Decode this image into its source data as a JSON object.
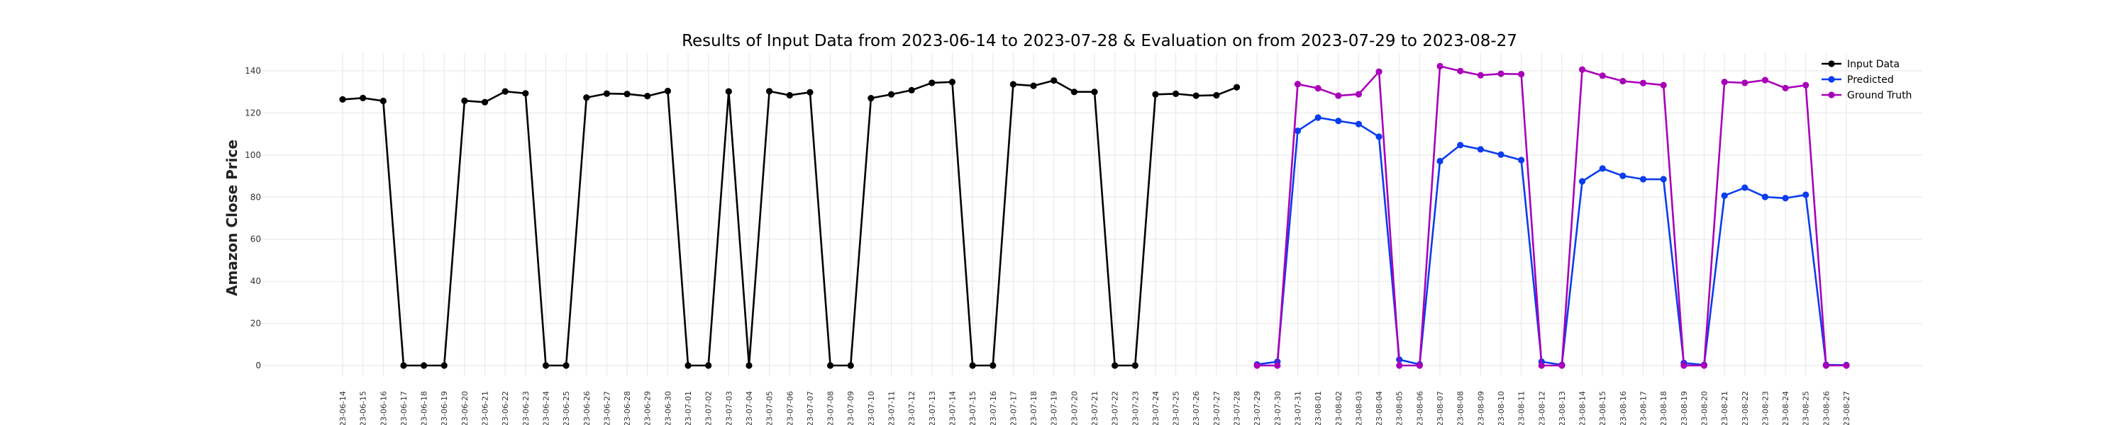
{
  "chart_data": {
    "type": "line",
    "title": "Results of Input Data from 2023-06-14 to 2023-07-28 & Evaluation on from 2023-07-29 to 2023-08-27",
    "ylabel": "Amazon Close Price",
    "xlabel": "",
    "ylim": [
      -5,
      150
    ],
    "yticks": [
      0,
      20,
      40,
      60,
      80,
      100,
      120,
      140
    ],
    "grid": true,
    "legend_position": "top-right",
    "x_tick_labels": [
      "2023-06-14",
      "2023-06-15",
      "2023-06-16",
      "2023-06-17",
      "2023-06-18",
      "2023-06-19",
      "2023-06-20",
      "2023-06-21",
      "2023-06-22",
      "2023-06-23",
      "2023-06-24",
      "2023-06-25",
      "2023-06-26",
      "2023-06-27",
      "2023-06-28",
      "2023-06-29",
      "2023-06-30",
      "2023-07-01",
      "2023-07-02",
      "2023-07-03",
      "2023-07-04",
      "2023-07-05",
      "2023-07-06",
      "2023-07-07",
      "2023-07-08",
      "2023-07-09",
      "2023-07-10",
      "2023-07-11",
      "2023-07-12",
      "2023-07-13",
      "2023-07-14",
      "2023-07-15",
      "2023-07-16",
      "2023-07-17",
      "2023-07-18",
      "2023-07-19",
      "2023-07-20",
      "2023-07-21",
      "2023-07-22",
      "2023-07-23",
      "2023-07-24",
      "2023-07-25",
      "2023-07-26",
      "2023-07-27",
      "2023-07-28",
      "2023-07-29",
      "2023-07-30",
      "2023-07-31",
      "2023-08-01",
      "2023-08-02",
      "2023-08-03",
      "2023-08-04",
      "2023-08-05",
      "2023-08-06",
      "2023-08-07",
      "2023-08-08",
      "2023-08-09",
      "2023-08-10",
      "2023-08-11",
      "2023-08-12",
      "2023-08-13",
      "2023-08-14",
      "2023-08-15",
      "2023-08-16",
      "2023-08-17",
      "2023-08-18",
      "2023-08-19",
      "2023-08-20",
      "2023-08-21",
      "2023-08-22",
      "2023-08-23",
      "2023-08-24",
      "2023-08-25",
      "2023-08-26",
      "2023-08-27"
    ],
    "series": [
      {
        "name": "Input Data",
        "color": "#000000",
        "x": [
          "2023-06-14",
          "2023-06-15",
          "2023-06-16",
          "2023-06-17",
          "2023-06-18",
          "2023-06-19",
          "2023-06-20",
          "2023-06-21",
          "2023-06-22",
          "2023-06-23",
          "2023-06-24",
          "2023-06-25",
          "2023-06-26",
          "2023-06-27",
          "2023-06-28",
          "2023-06-29",
          "2023-06-30",
          "2023-07-01",
          "2023-07-02",
          "2023-07-03",
          "2023-07-04",
          "2023-07-05",
          "2023-07-06",
          "2023-07-07",
          "2023-07-08",
          "2023-07-09",
          "2023-07-10",
          "2023-07-11",
          "2023-07-12",
          "2023-07-13",
          "2023-07-14",
          "2023-07-15",
          "2023-07-16",
          "2023-07-17",
          "2023-07-18",
          "2023-07-19",
          "2023-07-20",
          "2023-07-21",
          "2023-07-22",
          "2023-07-23",
          "2023-07-24",
          "2023-07-25",
          "2023-07-26",
          "2023-07-27",
          "2023-07-28"
        ],
        "values": [
          126.4,
          127.1,
          125.7,
          0,
          0,
          0,
          125.8,
          125.1,
          130.2,
          129.3,
          0,
          0,
          127.3,
          129.2,
          129.0,
          128.0,
          130.4,
          0,
          0,
          130.2,
          0,
          130.3,
          128.4,
          129.8,
          0,
          0,
          127.0,
          128.8,
          130.8,
          134.3,
          134.7,
          0,
          0,
          133.6,
          132.9,
          135.4,
          130.0,
          130.0,
          0,
          0,
          128.8,
          129.1,
          128.2,
          128.4,
          132.2
        ]
      },
      {
        "name": "Predicted",
        "color": "#0a3cf0",
        "x": [
          "2023-07-29",
          "2023-07-30",
          "2023-07-31",
          "2023-08-01",
          "2023-08-02",
          "2023-08-03",
          "2023-08-04",
          "2023-08-05",
          "2023-08-06",
          "2023-08-07",
          "2023-08-08",
          "2023-08-09",
          "2023-08-10",
          "2023-08-11",
          "2023-08-12",
          "2023-08-13",
          "2023-08-14",
          "2023-08-15",
          "2023-08-16",
          "2023-08-17",
          "2023-08-18",
          "2023-08-19",
          "2023-08-20",
          "2023-08-21",
          "2023-08-22",
          "2023-08-23",
          "2023-08-24",
          "2023-08-25",
          "2023-08-26",
          "2023-08-27"
        ],
        "values": [
          0.5,
          1.8,
          111.5,
          117.8,
          116.2,
          114.7,
          108.7,
          2.8,
          0.5,
          97.1,
          104.7,
          102.7,
          100.2,
          97.6,
          1.8,
          0.3,
          87.5,
          93.6,
          90.1,
          88.5,
          88.5,
          1.2,
          0.3,
          80.7,
          84.5,
          80.1,
          79.5,
          81.1,
          0.3,
          0.2
        ]
      },
      {
        "name": "Ground Truth",
        "color": "#a800b8",
        "x": [
          "2023-07-29",
          "2023-07-30",
          "2023-07-31",
          "2023-08-01",
          "2023-08-02",
          "2023-08-03",
          "2023-08-04",
          "2023-08-05",
          "2023-08-06",
          "2023-08-07",
          "2023-08-08",
          "2023-08-09",
          "2023-08-10",
          "2023-08-11",
          "2023-08-12",
          "2023-08-13",
          "2023-08-14",
          "2023-08-15",
          "2023-08-16",
          "2023-08-17",
          "2023-08-18",
          "2023-08-19",
          "2023-08-20",
          "2023-08-21",
          "2023-08-22",
          "2023-08-23",
          "2023-08-24",
          "2023-08-25",
          "2023-08-26",
          "2023-08-27"
        ],
        "values": [
          0,
          0,
          133.7,
          131.7,
          128.2,
          128.9,
          139.6,
          0,
          0,
          142.2,
          139.9,
          137.9,
          138.6,
          138.4,
          0,
          0,
          140.6,
          137.7,
          135.1,
          134.2,
          133.2,
          0,
          0,
          134.7,
          134.3,
          135.6,
          131.8,
          133.2,
          0,
          0
        ]
      }
    ]
  }
}
